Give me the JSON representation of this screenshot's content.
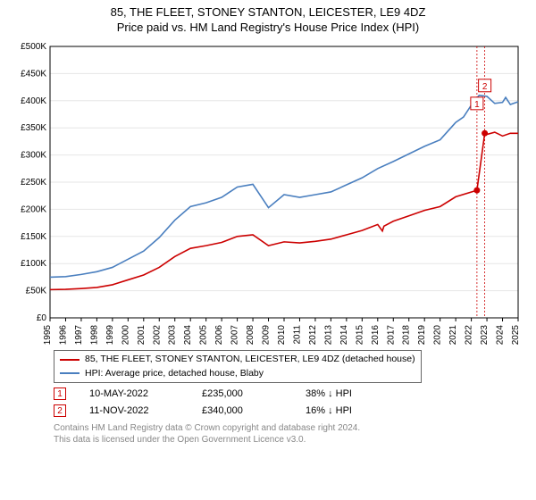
{
  "title_line1": "85, THE FLEET, STONEY STANTON, LEICESTER, LE9 4DZ",
  "title_line2": "Price paid vs. HM Land Registry's House Price Index (HPI)",
  "legend": {
    "series1": "85, THE FLEET, STONEY STANTON, LEICESTER, LE9 4DZ (detached house)",
    "series2": "HPI: Average price, detached house, Blaby"
  },
  "sales": [
    {
      "n": "1",
      "date": "10-MAY-2022",
      "price": "£235,000",
      "delta": "38% ↓  HPI"
    },
    {
      "n": "2",
      "date": "11-NOV-2022",
      "price": "£340,000",
      "delta": "16% ↓  HPI"
    }
  ],
  "credit_line1": "Contains HM Land Registry data © Crown copyright and database right 2024.",
  "credit_line2": "This data is licensed under the Open Government Licence v3.0.",
  "chart": {
    "type": "line",
    "background_color": "#ffffff",
    "plot_border_color": "#000000",
    "grid_color": "#e6e6e6",
    "x_years": [
      1995,
      1996,
      1997,
      1998,
      1999,
      2000,
      2001,
      2002,
      2003,
      2004,
      2005,
      2006,
      2007,
      2008,
      2009,
      2010,
      2011,
      2012,
      2013,
      2014,
      2015,
      2016,
      2017,
      2018,
      2019,
      2020,
      2021,
      2022,
      2023,
      2024,
      2025
    ],
    "y_ticks": [
      0,
      50000,
      100000,
      150000,
      200000,
      250000,
      300000,
      350000,
      400000,
      450000,
      500000
    ],
    "y_tick_labels": [
      "£0",
      "£50K",
      "£100K",
      "£150K",
      "£200K",
      "£250K",
      "£300K",
      "£350K",
      "£400K",
      "£450K",
      "£500K"
    ],
    "ylim": [
      0,
      500000
    ],
    "x_label_fontsize": 10,
    "y_label_fontsize": 10,
    "title_fontsize": 13,
    "line_width": 1.6,
    "series": [
      {
        "name": "property",
        "color": "#cc0000",
        "points": [
          [
            1995,
            52000
          ],
          [
            1996,
            52500
          ],
          [
            1997,
            54000
          ],
          [
            1998,
            56000
          ],
          [
            1999,
            61000
          ],
          [
            2000,
            70000
          ],
          [
            2001,
            79000
          ],
          [
            2002,
            93000
          ],
          [
            2003,
            113000
          ],
          [
            2004,
            128000
          ],
          [
            2005,
            133000
          ],
          [
            2006,
            139000
          ],
          [
            2007,
            150000
          ],
          [
            2008,
            153000
          ],
          [
            2009,
            133000
          ],
          [
            2010,
            140000
          ],
          [
            2011,
            138000
          ],
          [
            2012,
            141000
          ],
          [
            2013,
            145000
          ],
          [
            2014,
            153000
          ],
          [
            2015,
            161000
          ],
          [
            2016,
            172000
          ],
          [
            2016.3,
            160000
          ],
          [
            2016.4,
            169000
          ],
          [
            2017,
            178000
          ],
          [
            2018,
            188000
          ],
          [
            2019,
            198000
          ],
          [
            2020,
            205000
          ],
          [
            2021,
            223000
          ],
          [
            2022.36,
            235000
          ],
          [
            2022.86,
            340000
          ],
          [
            2023,
            338000
          ],
          [
            2023.5,
            342000
          ],
          [
            2024,
            335000
          ],
          [
            2024.5,
            340000
          ],
          [
            2025,
            340000
          ]
        ]
      },
      {
        "name": "hpi",
        "color": "#4a7fbf",
        "points": [
          [
            1995,
            75000
          ],
          [
            1996,
            76000
          ],
          [
            1997,
            80000
          ],
          [
            1998,
            85000
          ],
          [
            1999,
            93000
          ],
          [
            2000,
            108000
          ],
          [
            2001,
            123000
          ],
          [
            2002,
            148000
          ],
          [
            2003,
            180000
          ],
          [
            2004,
            205000
          ],
          [
            2005,
            212000
          ],
          [
            2006,
            222000
          ],
          [
            2007,
            241000
          ],
          [
            2008,
            246000
          ],
          [
            2009,
            203000
          ],
          [
            2010,
            227000
          ],
          [
            2011,
            222000
          ],
          [
            2012,
            227000
          ],
          [
            2013,
            232000
          ],
          [
            2014,
            245000
          ],
          [
            2015,
            258000
          ],
          [
            2016,
            275000
          ],
          [
            2017,
            288000
          ],
          [
            2018,
            302000
          ],
          [
            2019,
            316000
          ],
          [
            2020,
            328000
          ],
          [
            2021,
            360000
          ],
          [
            2021.5,
            370000
          ],
          [
            2022,
            392000
          ],
          [
            2022.5,
            410000
          ],
          [
            2023,
            408000
          ],
          [
            2023.5,
            395000
          ],
          [
            2024,
            397000
          ],
          [
            2024.2,
            406000
          ],
          [
            2024.5,
            393000
          ],
          [
            2025,
            398000
          ]
        ]
      }
    ],
    "sale_markers": [
      {
        "n": "1",
        "x": 2022.36,
        "y": 235000,
        "label_y": 395000
      },
      {
        "n": "2",
        "x": 2022.86,
        "y": 340000,
        "label_y": 428000
      }
    ],
    "marker_color": "#cc0000",
    "marker_radius": 3.5,
    "marker_box_border": "#cc0000",
    "marker_guide_color": "#cc0000",
    "marker_guide_dash": "2,2"
  }
}
